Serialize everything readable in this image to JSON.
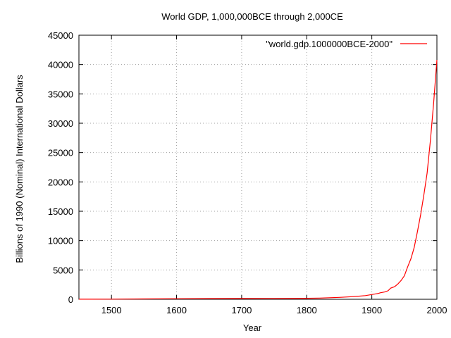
{
  "chart_data": {
    "type": "line",
    "title": "World GDP, 1,000,000BCE through 2,000CE",
    "xlabel": "Year",
    "ylabel": "Billions of 1990 (Nominal) International Dollars",
    "xlim": [
      1450,
      2000
    ],
    "ylim": [
      0,
      45000
    ],
    "x_ticks": [
      1500,
      1600,
      1700,
      1800,
      1900,
      2000
    ],
    "y_ticks": [
      0,
      5000,
      10000,
      15000,
      20000,
      25000,
      30000,
      35000,
      40000,
      45000
    ],
    "grid": true,
    "legend_position": "top-right",
    "series": [
      {
        "name": "\"world.gdp.1000000BCE-2000\"",
        "color": "#ff0000",
        "x": [
          1450,
          1500,
          1550,
          1600,
          1650,
          1700,
          1750,
          1800,
          1820,
          1850,
          1870,
          1880,
          1890,
          1900,
          1910,
          1913,
          1920,
          1925,
          1929,
          1935,
          1940,
          1945,
          1950,
          1955,
          1960,
          1965,
          1970,
          1975,
          1980,
          1985,
          1990,
          1995,
          2000
        ],
        "values": [
          10,
          30,
          60,
          100,
          115,
          130,
          150,
          170,
          200,
          330,
          450,
          530,
          620,
          800,
          1000,
          1100,
          1250,
          1450,
          1900,
          2150,
          2600,
          3200,
          4000,
          5500,
          6900,
          8800,
          11500,
          14400,
          17800,
          21500,
          27100,
          33500,
          40800
        ]
      }
    ]
  }
}
